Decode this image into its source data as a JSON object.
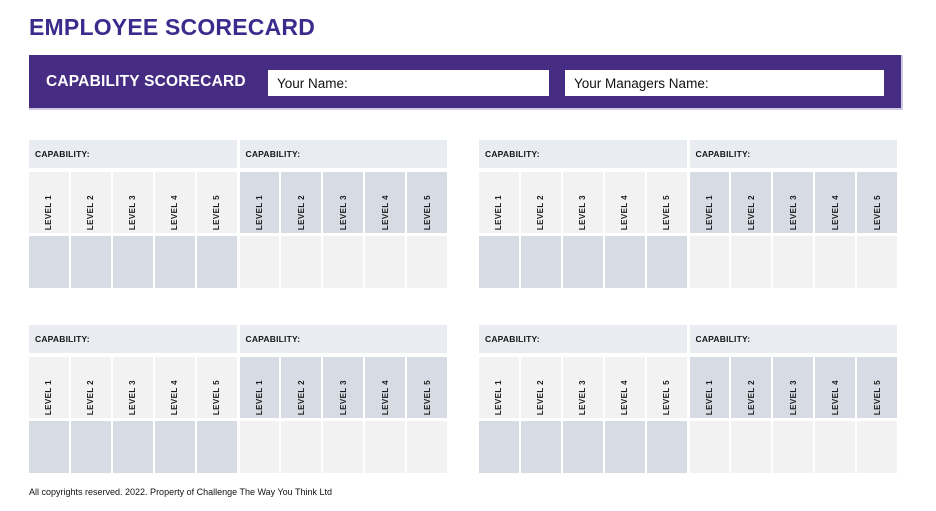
{
  "page": {
    "title": "EMPLOYEE SCORECARD",
    "footer": "All copyrights reserved. 2022. Property of Challenge The Way You Think Ltd"
  },
  "header_bar": {
    "title": "CAPABILITY SCORECARD",
    "fields": [
      {
        "label": "Your Name:",
        "value": ""
      },
      {
        "label": "Your Managers Name:",
        "value": ""
      }
    ]
  },
  "levels": [
    "LEVEL 1",
    "LEVEL 2",
    "LEVEL 3",
    "LEVEL 4",
    "LEVEL 5"
  ],
  "scorecards": [
    {
      "position": "top-left",
      "tables": [
        {
          "title": "CAPABILITY:"
        },
        {
          "title": "CAPABILITY:"
        }
      ]
    },
    {
      "position": "top-right",
      "tables": [
        {
          "title": "CAPABILITY:"
        },
        {
          "title": "CAPABILITY:"
        }
      ]
    },
    {
      "position": "bottom-left",
      "tables": [
        {
          "title": "CAPABILITY:"
        },
        {
          "title": "CAPABILITY:"
        }
      ]
    },
    {
      "position": "bottom-right",
      "tables": [
        {
          "title": "CAPABILITY:"
        },
        {
          "title": "CAPABILITY:"
        }
      ]
    }
  ],
  "colors": {
    "accent_purple": "#462c82",
    "title_purple": "#3c2b8d",
    "bar_edge": "#cfc9e4",
    "capability_header_cell": "#e9ecf1",
    "light_cell": "#f2f2f2",
    "blue_cell": "#d6dbe4"
  }
}
